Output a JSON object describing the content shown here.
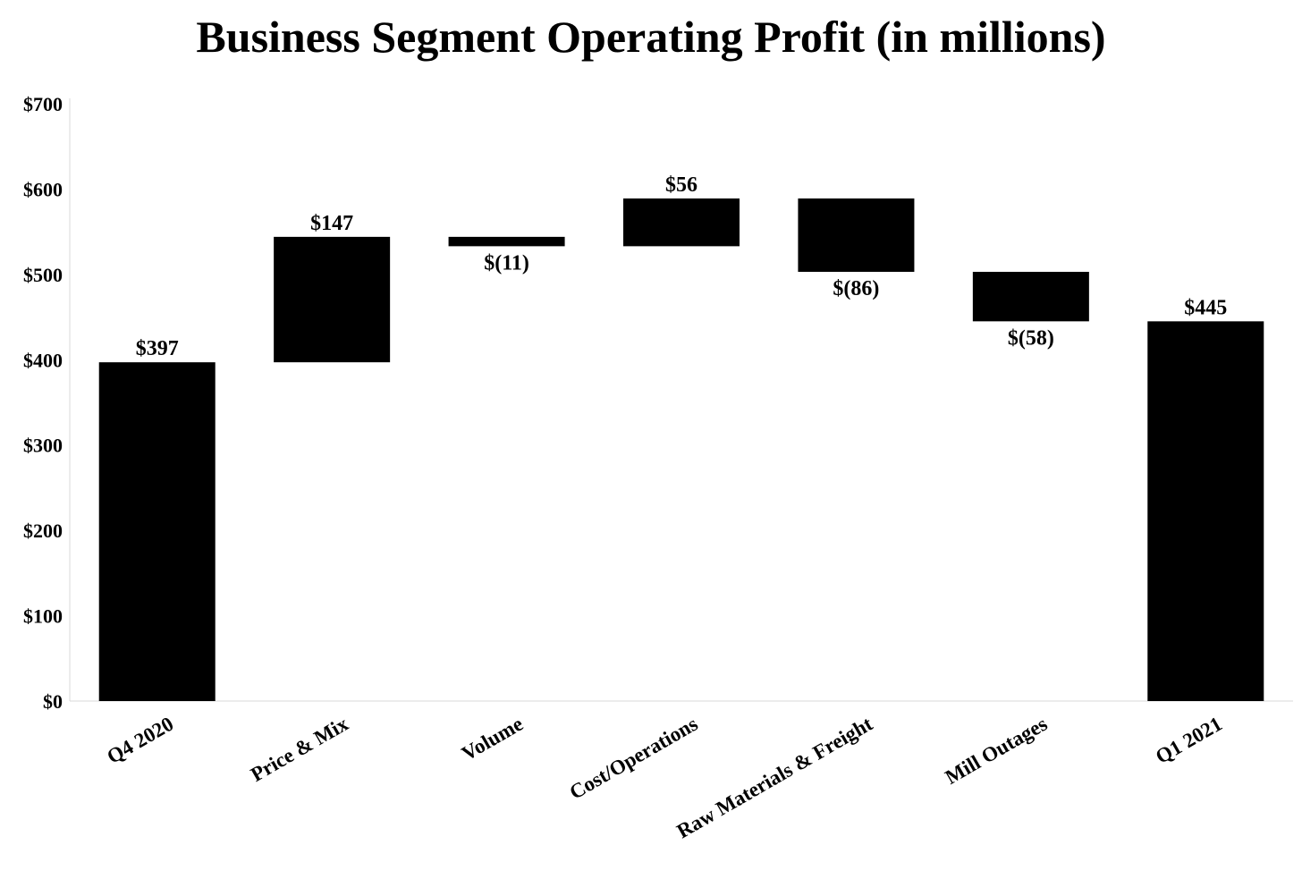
{
  "chart_data": {
    "type": "waterfall",
    "title": "Business Segment Operating Profit (in millions)",
    "xlabel": "",
    "ylabel": "",
    "ylim": [
      0,
      700
    ],
    "yticks": [
      0,
      100,
      200,
      300,
      400,
      500,
      600,
      700
    ],
    "ytick_labels": [
      "$0",
      "$100",
      "$200",
      "$300",
      "$400",
      "$500",
      "$600",
      "$700"
    ],
    "grid": false,
    "bar_color": "#000000",
    "categories": [
      "Q4 2020",
      "Price & Mix",
      "Volume",
      "Cost/Operations",
      "Raw Materials & Freight",
      "Mill Outages",
      "Q1 2021"
    ],
    "values": [
      397,
      147,
      -11,
      56,
      -86,
      -58,
      445
    ],
    "bar_kinds": [
      "total",
      "delta",
      "delta",
      "delta",
      "delta",
      "delta",
      "total"
    ],
    "data_labels": [
      "$397",
      "$147",
      "$(11)",
      "$56",
      "$(86)",
      "$(58)",
      "$445"
    ]
  }
}
